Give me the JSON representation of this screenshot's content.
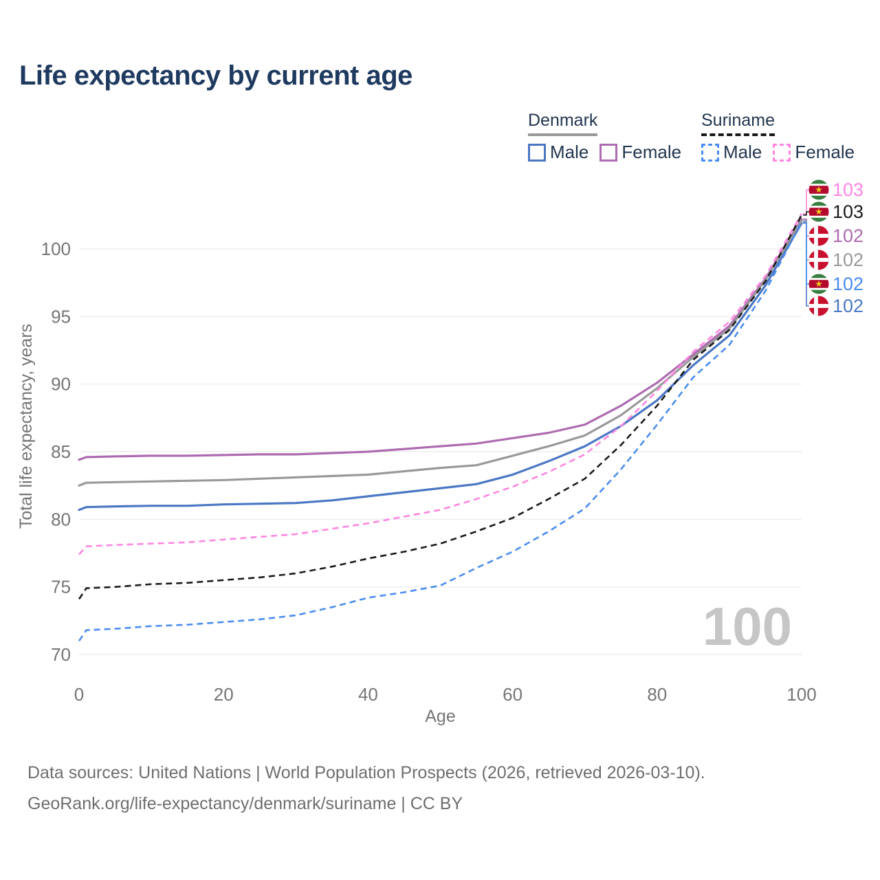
{
  "title": "Life expectancy by current age",
  "watermark_age": "100",
  "legend": {
    "position": "top-right",
    "groups": [
      {
        "name": "Denmark",
        "line_style": "solid",
        "line_color": "#999999",
        "items": [
          {
            "label": "Male",
            "color": "#4a77c4"
          },
          {
            "label": "Female",
            "color": "#ae6bb0"
          }
        ]
      },
      {
        "name": "Suriname",
        "line_style": "dashed",
        "line_color": "#1a1a1a",
        "items": [
          {
            "label": "Male",
            "color": "#4a8cf0"
          },
          {
            "label": "Female",
            "color": "#ff85e2"
          }
        ]
      }
    ]
  },
  "footer": {
    "sources": "Data sources: United Nations | World Population Prospects (2026, retrieved 2026-03-10).",
    "attribution": "GeoRank.org/life-expectancy/denmark/suriname | CC BY"
  },
  "chart_data": {
    "type": "line",
    "title": "Life expectancy by current age",
    "xlabel": "Age",
    "ylabel": "Total life expectancy, years",
    "xlim": [
      0,
      100
    ],
    "ylim": [
      68.5,
      104
    ],
    "xticks": [
      0,
      20,
      40,
      60,
      80,
      100
    ],
    "yticks": [
      70,
      75,
      80,
      85,
      90,
      95,
      100
    ],
    "grid": "horizontal-only",
    "gridline_color": "#eaeaea",
    "tick_color": "#757575",
    "x": [
      0,
      1,
      5,
      10,
      15,
      20,
      25,
      30,
      35,
      40,
      45,
      50,
      55,
      60,
      65,
      70,
      75,
      80,
      85,
      90,
      95,
      100
    ],
    "series": [
      {
        "name": "Denmark Male",
        "country": "Denmark",
        "sex": "male",
        "color": "#4a77c4",
        "dashed": false,
        "end_label": "102",
        "label_slot": 5,
        "flag": "denmark",
        "values": [
          80.7,
          80.9,
          80.95,
          81.0,
          81.0,
          81.1,
          81.15,
          81.2,
          81.4,
          81.7,
          82.0,
          82.3,
          82.6,
          83.3,
          84.3,
          85.4,
          86.9,
          88.8,
          91.4,
          93.6,
          97.3,
          101.9
        ]
      },
      {
        "name": "Denmark Female",
        "country": "Denmark",
        "sex": "female",
        "color": "#ae6bb0",
        "dashed": false,
        "end_label": "102",
        "label_slot": 2,
        "flag": "denmark",
        "values": [
          84.4,
          84.6,
          84.65,
          84.7,
          84.7,
          84.75,
          84.8,
          84.8,
          84.9,
          85.0,
          85.2,
          85.4,
          85.6,
          86.0,
          86.4,
          87.0,
          88.4,
          90.1,
          92.2,
          94.3,
          97.8,
          102.2
        ]
      },
      {
        "name": "Denmark Both sexes",
        "country": "Denmark",
        "sex": "both",
        "color": "#999999",
        "dashed": false,
        "end_label": "102",
        "label_slot": 3,
        "flag": "denmark",
        "values": [
          82.5,
          82.7,
          82.75,
          82.8,
          82.85,
          82.9,
          83.0,
          83.1,
          83.2,
          83.3,
          83.55,
          83.8,
          84.0,
          84.7,
          85.4,
          86.2,
          87.7,
          89.7,
          92.0,
          94.1,
          97.7,
          102.1
        ]
      },
      {
        "name": "Suriname Male",
        "country": "Suriname",
        "sex": "male",
        "color": "#4a8cf0",
        "dashed": true,
        "end_label": "102",
        "label_slot": 4,
        "flag": "suriname",
        "values": [
          71.0,
          71.8,
          71.9,
          72.1,
          72.2,
          72.4,
          72.6,
          72.9,
          73.5,
          74.2,
          74.6,
          75.1,
          76.4,
          77.6,
          79.1,
          80.8,
          83.7,
          87.0,
          90.5,
          92.9,
          96.9,
          102.0
        ]
      },
      {
        "name": "Suriname Female",
        "country": "Suriname",
        "sex": "female",
        "color": "#ff85e2",
        "dashed": true,
        "end_label": "103",
        "label_slot": 0,
        "flag": "suriname",
        "values": [
          77.4,
          78.0,
          78.1,
          78.2,
          78.3,
          78.5,
          78.7,
          78.9,
          79.3,
          79.7,
          80.2,
          80.7,
          81.5,
          82.4,
          83.5,
          84.8,
          86.9,
          89.5,
          92.4,
          94.6,
          98.0,
          102.6
        ]
      },
      {
        "name": "Suriname Both sexes",
        "country": "Suriname",
        "sex": "both",
        "color": "#1a1a1a",
        "dashed": true,
        "end_label": "103",
        "label_slot": 1,
        "flag": "suriname",
        "values": [
          74.1,
          74.9,
          75.0,
          75.2,
          75.3,
          75.5,
          75.7,
          76.0,
          76.5,
          77.1,
          77.6,
          78.2,
          79.1,
          80.1,
          81.5,
          83.0,
          85.5,
          88.4,
          91.8,
          94.0,
          97.6,
          102.5
        ]
      }
    ],
    "flag_colors": {
      "denmark": {
        "red": "#c8102e",
        "cross": "#ffffff"
      },
      "suriname": {
        "green": "#377e3f",
        "white": "#ffffff",
        "red": "#b40a2d",
        "star": "#ecc81d"
      }
    }
  }
}
